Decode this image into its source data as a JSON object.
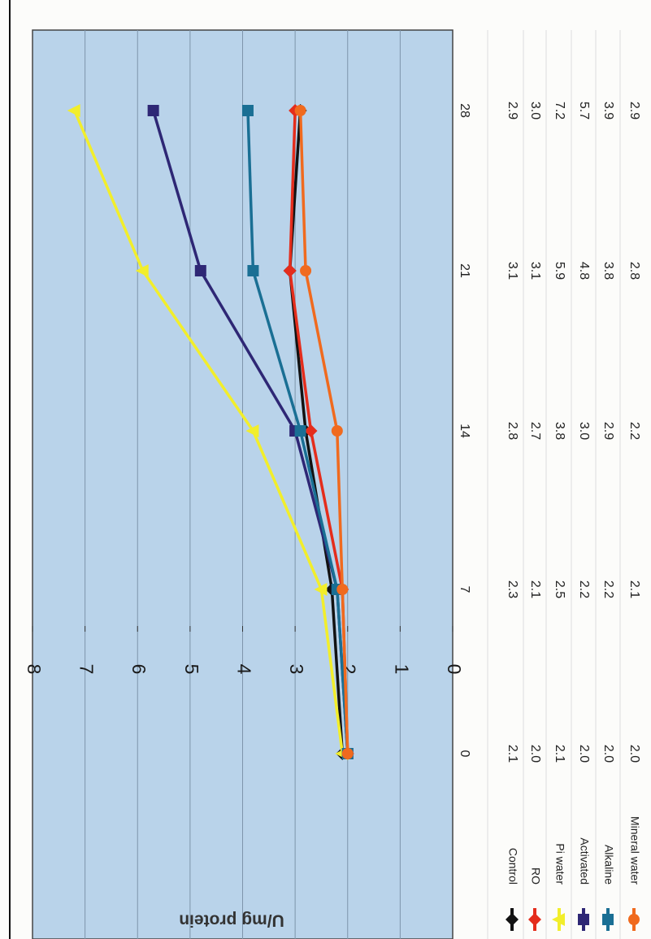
{
  "chart_data": {
    "type": "line",
    "title": "",
    "xlabel": "",
    "ylabel": "U/mg protein",
    "ylim": [
      0,
      8
    ],
    "y_ticks": [
      "0",
      "1",
      "2",
      "3",
      "4",
      "5",
      "6",
      "7",
      "8"
    ],
    "categories": [
      "0",
      "7",
      "14",
      "21",
      "28"
    ],
    "grid": "on",
    "orientation": "rotated 90 degrees clockwise",
    "legend_placement": "bottom-left, as data-table row headers",
    "background_color": "#b9d3ea",
    "series": [
      {
        "name": "Control",
        "color": "#121212",
        "marker": "diamond",
        "values": [
          2.1,
          2.3,
          2.8,
          3.1,
          2.9
        ]
      },
      {
        "name": "RO",
        "color": "#e42d1c",
        "marker": "diamond",
        "values": [
          2.0,
          2.1,
          2.7,
          3.1,
          3.0
        ]
      },
      {
        "name": "Pi water",
        "color": "#f2ee2b",
        "marker": "triangle",
        "values": [
          2.1,
          2.5,
          3.8,
          5.9,
          7.2
        ]
      },
      {
        "name": "Activated",
        "color": "#2e2775",
        "marker": "square",
        "values": [
          2.0,
          2.2,
          3.0,
          4.8,
          5.7
        ]
      },
      {
        "name": "Alkaline",
        "color": "#1a6f94",
        "marker": "square",
        "values": [
          2.0,
          2.2,
          2.9,
          3.8,
          3.9
        ]
      },
      {
        "name": "Mineral water",
        "color": "#f06a1e",
        "marker": "circle",
        "values": [
          2.0,
          2.1,
          2.2,
          2.8,
          2.9
        ]
      }
    ],
    "table_rows": [
      [
        "2.1",
        "2.3",
        "2.8",
        "3.1",
        "2.9"
      ],
      [
        "2.0",
        "2.1",
        "2.7",
        "3.1",
        "3.0"
      ],
      [
        "2.1",
        "2.5",
        "3.8",
        "5.9",
        "7.2"
      ],
      [
        "2.0",
        "2.2",
        "3.0",
        "4.8",
        "5.7"
      ],
      [
        "2.0",
        "2.2",
        "2.9",
        "3.8",
        "3.9"
      ],
      [
        "2.0",
        "2.1",
        "2.2",
        "2.8",
        "2.9"
      ]
    ]
  }
}
